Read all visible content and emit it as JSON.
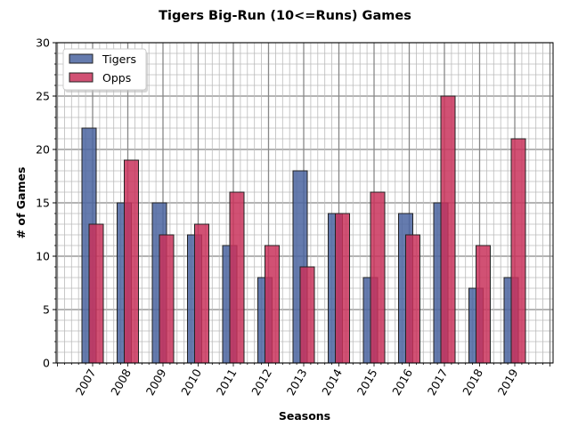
{
  "chart_data": {
    "type": "bar",
    "title": "Tigers Big-Run (10<=Runs) Games",
    "xlabel": "Seasons",
    "ylabel": "# of Games",
    "ylim": [
      0,
      30
    ],
    "yticks": [
      "0",
      "5",
      "10",
      "15",
      "20",
      "25",
      "30"
    ],
    "grid": true,
    "legend_position": "top-left",
    "categories": [
      "2007",
      "2008",
      "2009",
      "2010",
      "2011",
      "2012",
      "2013",
      "2014",
      "2015",
      "2016",
      "2017",
      "2018",
      "2019"
    ],
    "series": [
      {
        "name": "Tigers",
        "color": "#4a64a0",
        "values": [
          22,
          15,
          15,
          12,
          11,
          8,
          18,
          14,
          8,
          14,
          15,
          7,
          8
        ]
      },
      {
        "name": "Opps",
        "color": "#c9325c",
        "values": [
          13,
          19,
          12,
          13,
          16,
          11,
          9,
          14,
          16,
          12,
          25,
          11,
          21
        ]
      }
    ]
  }
}
